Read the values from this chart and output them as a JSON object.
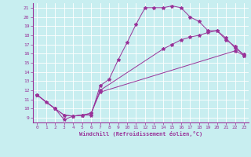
{
  "title": "",
  "xlabel": "Windchill (Refroidissement éolien,°C)",
  "ylabel": "",
  "bg_color": "#c8eef0",
  "line_color": "#993399",
  "grid_color": "#ffffff",
  "xlim": [
    -0.5,
    23.5
  ],
  "ylim": [
    8.5,
    21.5
  ],
  "xticks": [
    0,
    1,
    2,
    3,
    4,
    5,
    6,
    7,
    8,
    9,
    10,
    11,
    12,
    13,
    14,
    15,
    16,
    17,
    18,
    19,
    20,
    21,
    22,
    23
  ],
  "yticks": [
    9,
    10,
    11,
    12,
    13,
    14,
    15,
    16,
    17,
    18,
    19,
    20,
    21
  ],
  "line1_x": [
    0,
    1,
    2,
    3,
    4,
    5,
    6,
    7,
    8,
    9,
    10,
    11,
    12,
    13,
    14,
    15,
    16,
    17,
    18,
    19,
    20,
    21,
    22,
    23
  ],
  "line1_y": [
    11.5,
    10.7,
    10.0,
    8.8,
    9.2,
    9.3,
    9.3,
    12.5,
    13.2,
    15.3,
    17.2,
    19.2,
    21.0,
    21.0,
    21.0,
    21.2,
    21.0,
    20.0,
    19.5,
    18.5,
    18.5,
    17.7,
    16.6,
    15.9
  ],
  "line2_x": [
    0,
    2,
    3,
    4,
    5,
    6,
    7,
    22,
    23
  ],
  "line2_y": [
    11.5,
    10.0,
    9.3,
    9.2,
    9.3,
    9.5,
    11.8,
    16.3,
    15.8
  ],
  "line3_x": [
    0,
    2,
    3,
    4,
    5,
    6,
    7,
    14,
    15,
    16,
    17,
    18,
    19,
    20,
    21,
    22,
    23
  ],
  "line3_y": [
    11.5,
    10.0,
    9.3,
    9.2,
    9.3,
    9.5,
    12.0,
    16.5,
    17.0,
    17.5,
    17.8,
    18.0,
    18.3,
    18.5,
    17.5,
    16.8,
    15.8
  ]
}
